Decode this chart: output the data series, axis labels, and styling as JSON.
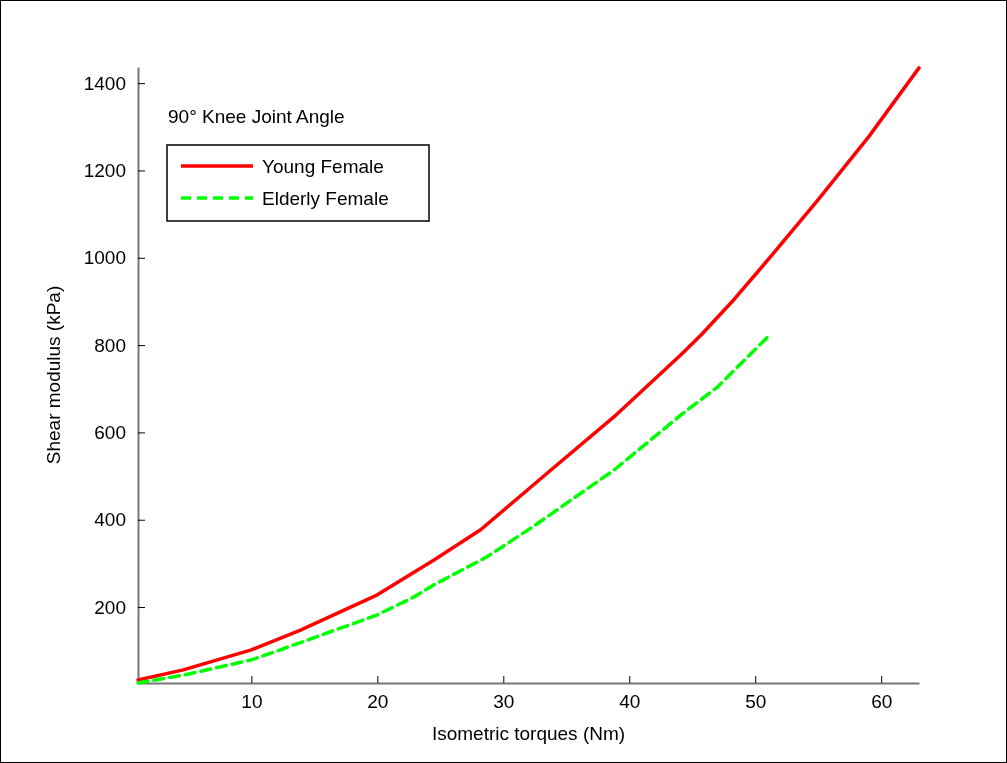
{
  "chart_data": {
    "type": "line",
    "xlabel": "Isometric torques (Nm)",
    "ylabel": "Shear modulus (kPa)",
    "annotations": [
      "90° Knee Joint Angle"
    ],
    "xlim": [
      1,
      63
    ],
    "xticks": [
      10,
      20,
      30,
      40,
      50,
      60
    ],
    "ylim": [
      26,
      1437
    ],
    "yticks": [
      200,
      400,
      600,
      800,
      1000,
      1200,
      1400
    ],
    "legend": "top left",
    "grid": false,
    "series": [
      {
        "name": "Young Female",
        "color": "#ff0000",
        "line_style": "solid",
        "x": [
          1,
          4.6,
          10,
          13.9,
          20,
          24.5,
          28.2,
          33.5,
          38.8,
          44.1,
          45.7,
          48.3,
          51,
          55,
          59,
          63
        ],
        "values": [
          33,
          56,
          102,
          147,
          228,
          308,
          377,
          507,
          636,
          778,
          823,
          904,
          995,
          1133,
          1277,
          1435
        ]
      },
      {
        "name": "Elderly Female",
        "color": "#00ff00",
        "line_style": "dashed",
        "x": [
          1,
          4.6,
          10,
          12.3,
          20,
          22.9,
          24.5,
          28.7,
          32.2,
          38.8,
          44.1,
          47,
          51
        ],
        "values": [
          26,
          44,
          79,
          102,
          182,
          223,
          251,
          315,
          381,
          514,
          640,
          704,
          819
        ]
      }
    ]
  }
}
